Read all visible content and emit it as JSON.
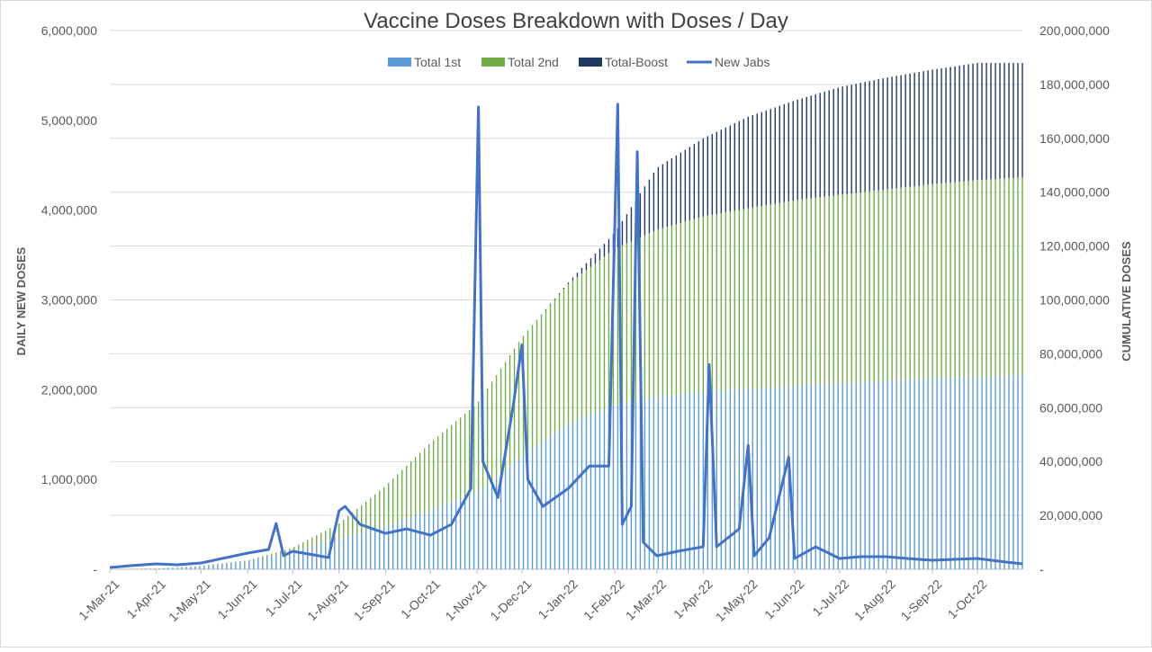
{
  "chart_data": {
    "type": "bar",
    "title": "Vaccine Doses Breakdown with Doses / Day",
    "ylabel_left": "DAILY NEW DOSES",
    "ylabel_right": "CUMULATIVE DOSES",
    "left_axis": {
      "ylim": [
        0,
        6000000
      ],
      "ticks": [
        0,
        1000000,
        2000000,
        3000000,
        4000000,
        5000000,
        6000000
      ],
      "tick_labels": [
        "-",
        "1,000,000",
        "2,000,000",
        "3,000,000",
        "4,000,000",
        "5,000,000",
        "6,000,000"
      ]
    },
    "right_axis": {
      "ylim": [
        0,
        200000000
      ],
      "ticks": [
        0,
        20000000,
        40000000,
        60000000,
        80000000,
        100000000,
        120000000,
        140000000,
        160000000,
        180000000,
        200000000
      ],
      "tick_labels": [
        "-",
        "20,000,000",
        "40,000,000",
        "60,000,000",
        "80,000,000",
        "100,000,000",
        "120,000,000",
        "140,000,000",
        "160,000,000",
        "180,000,000",
        "200,000,000"
      ]
    },
    "x_axis": {
      "start": "2021-03-01",
      "end": "2022-10-31",
      "tick_dates": [
        "2021-03-01",
        "2021-04-01",
        "2021-05-01",
        "2021-06-01",
        "2021-07-01",
        "2021-08-01",
        "2021-09-01",
        "2021-10-01",
        "2021-11-01",
        "2021-12-01",
        "2022-01-01",
        "2022-02-01",
        "2022-03-01",
        "2022-04-01",
        "2022-05-01",
        "2022-06-01",
        "2022-07-01",
        "2022-08-01",
        "2022-09-01",
        "2022-10-01"
      ],
      "tick_labels": [
        "1-Mar-21",
        "1-Apr-21",
        "1-May-21",
        "1-Jun-21",
        "1-Jul-21",
        "1-Aug-21",
        "1-Sep-21",
        "1-Oct-21",
        "1-Nov-21",
        "1-Dec-21",
        "1-Jan-22",
        "1-Feb-22",
        "1-Mar-22",
        "1-Apr-22",
        "1-May-22",
        "1-Jun-22",
        "1-Jul-22",
        "1-Aug-22",
        "1-Sep-22",
        "1-Oct-22"
      ]
    },
    "legend": {
      "placement": "top-center",
      "entries": [
        "Total 1st",
        "Total 2nd",
        "Total-Boost",
        "New Jabs"
      ]
    },
    "grid": true,
    "colors": {
      "total_1st": "#5b9bd5",
      "total_2nd": "#70ad47",
      "total_boost": "#203864",
      "new_jabs": "#4472c4",
      "grid": "#d9d9d9",
      "text": "#595959"
    },
    "series": [
      {
        "name": "Total 1st",
        "kind": "stacked-bar",
        "axis": "right",
        "points": [
          [
            "2021-03-01",
            0
          ],
          [
            "2021-04-01",
            300000
          ],
          [
            "2021-05-01",
            1200000
          ],
          [
            "2021-06-01",
            3000000
          ],
          [
            "2021-07-01",
            6500000
          ],
          [
            "2021-08-01",
            11500000
          ],
          [
            "2021-09-01",
            16000000
          ],
          [
            "2021-10-01",
            22000000
          ],
          [
            "2021-11-01",
            28500000
          ],
          [
            "2021-12-01",
            42000000
          ],
          [
            "2022-01-01",
            54000000
          ],
          [
            "2022-02-01",
            61000000
          ],
          [
            "2022-03-01",
            64000000
          ],
          [
            "2022-04-01",
            66000000
          ],
          [
            "2022-05-01",
            67000000
          ],
          [
            "2022-06-01",
            68000000
          ],
          [
            "2022-07-01",
            69000000
          ],
          [
            "2022-08-01",
            70000000
          ],
          [
            "2022-09-01",
            71000000
          ],
          [
            "2022-10-01",
            71500000
          ],
          [
            "2022-10-31",
            72000000
          ]
        ]
      },
      {
        "name": "Total 2nd",
        "kind": "stacked-bar",
        "axis": "right",
        "points": [
          [
            "2021-03-01",
            0
          ],
          [
            "2021-04-01",
            0
          ],
          [
            "2021-05-01",
            100000
          ],
          [
            "2021-06-01",
            300000
          ],
          [
            "2021-07-01",
            1500000
          ],
          [
            "2021-08-01",
            5500000
          ],
          [
            "2021-09-01",
            15000000
          ],
          [
            "2021-10-01",
            25000000
          ],
          [
            "2021-11-01",
            33000000
          ],
          [
            "2021-12-01",
            44000000
          ],
          [
            "2022-01-01",
            52000000
          ],
          [
            "2022-02-01",
            58000000
          ],
          [
            "2022-03-01",
            62000000
          ],
          [
            "2022-04-01",
            65000000
          ],
          [
            "2022-05-01",
            67000000
          ],
          [
            "2022-06-01",
            69000000
          ],
          [
            "2022-07-01",
            70000000
          ],
          [
            "2022-08-01",
            71000000
          ],
          [
            "2022-09-01",
            72000000
          ],
          [
            "2022-10-01",
            73000000
          ],
          [
            "2022-10-31",
            73500000
          ]
        ]
      },
      {
        "name": "Total-Boost",
        "kind": "stacked-bar",
        "axis": "right",
        "points": [
          [
            "2021-03-01",
            0
          ],
          [
            "2021-10-01",
            0
          ],
          [
            "2021-11-01",
            0
          ],
          [
            "2021-12-01",
            0
          ],
          [
            "2022-01-01",
            500000
          ],
          [
            "2022-02-01",
            6000000
          ],
          [
            "2022-03-01",
            23000000
          ],
          [
            "2022-04-01",
            29000000
          ],
          [
            "2022-05-01",
            34000000
          ],
          [
            "2022-06-01",
            37000000
          ],
          [
            "2022-07-01",
            40000000
          ],
          [
            "2022-08-01",
            41500000
          ],
          [
            "2022-09-01",
            42500000
          ],
          [
            "2022-10-01",
            43500000
          ],
          [
            "2022-10-31",
            42500000
          ]
        ]
      },
      {
        "name": "New Jabs",
        "kind": "line",
        "axis": "left",
        "points": [
          [
            "2021-03-01",
            20000
          ],
          [
            "2021-03-15",
            40000
          ],
          [
            "2021-04-01",
            60000
          ],
          [
            "2021-04-15",
            50000
          ],
          [
            "2021-05-01",
            70000
          ],
          [
            "2021-05-15",
            120000
          ],
          [
            "2021-06-01",
            180000
          ],
          [
            "2021-06-15",
            220000
          ],
          [
            "2021-06-20",
            510000
          ],
          [
            "2021-06-25",
            150000
          ],
          [
            "2021-07-01",
            200000
          ],
          [
            "2021-07-15",
            160000
          ],
          [
            "2021-07-25",
            130000
          ],
          [
            "2021-08-01",
            650000
          ],
          [
            "2021-08-05",
            700000
          ],
          [
            "2021-08-15",
            500000
          ],
          [
            "2021-09-01",
            400000
          ],
          [
            "2021-09-15",
            450000
          ],
          [
            "2021-10-01",
            380000
          ],
          [
            "2021-10-15",
            500000
          ],
          [
            "2021-10-28",
            900000
          ],
          [
            "2021-11-02",
            5150000
          ],
          [
            "2021-11-05",
            1200000
          ],
          [
            "2021-11-15",
            800000
          ],
          [
            "2021-11-25",
            1800000
          ],
          [
            "2021-12-01",
            2500000
          ],
          [
            "2021-12-05",
            1000000
          ],
          [
            "2021-12-15",
            700000
          ],
          [
            "2022-01-01",
            900000
          ],
          [
            "2022-01-15",
            1150000
          ],
          [
            "2022-01-28",
            1150000
          ],
          [
            "2022-02-03",
            5180000
          ],
          [
            "2022-02-06",
            500000
          ],
          [
            "2022-02-12",
            700000
          ],
          [
            "2022-02-16",
            4650000
          ],
          [
            "2022-02-20",
            300000
          ],
          [
            "2022-03-01",
            150000
          ],
          [
            "2022-03-15",
            200000
          ],
          [
            "2022-04-01",
            250000
          ],
          [
            "2022-04-05",
            2280000
          ],
          [
            "2022-04-10",
            250000
          ],
          [
            "2022-04-25",
            450000
          ],
          [
            "2022-05-01",
            1380000
          ],
          [
            "2022-05-05",
            150000
          ],
          [
            "2022-05-15",
            350000
          ],
          [
            "2022-05-28",
            1250000
          ],
          [
            "2022-06-01",
            120000
          ],
          [
            "2022-06-15",
            250000
          ],
          [
            "2022-07-01",
            120000
          ],
          [
            "2022-07-15",
            140000
          ],
          [
            "2022-08-01",
            140000
          ],
          [
            "2022-08-15",
            120000
          ],
          [
            "2022-09-01",
            100000
          ],
          [
            "2022-09-15",
            110000
          ],
          [
            "2022-10-01",
            120000
          ],
          [
            "2022-10-15",
            90000
          ],
          [
            "2022-10-31",
            60000
          ]
        ]
      }
    ]
  }
}
